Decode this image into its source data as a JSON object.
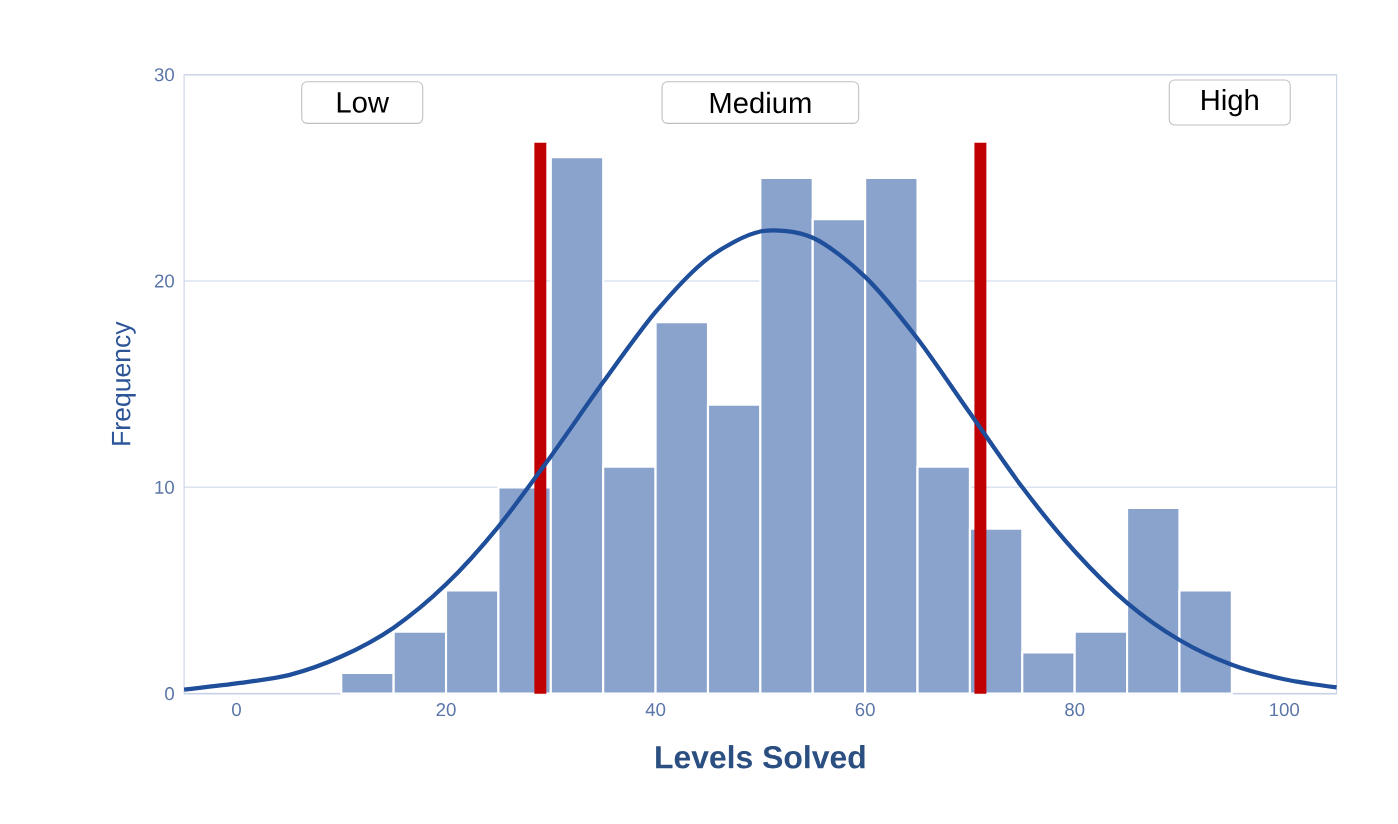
{
  "chart_data": {
    "type": "histogram",
    "xlabel": "Levels Solved",
    "ylabel": "Frequency",
    "bins": [
      10,
      15,
      20,
      25,
      30,
      35,
      40,
      45,
      50,
      55,
      60,
      65,
      70,
      75,
      80,
      85,
      90,
      95
    ],
    "values": [
      1,
      3,
      5,
      10,
      26,
      11,
      18,
      14,
      25,
      23,
      25,
      11,
      8,
      2,
      3,
      9,
      5
    ],
    "color": "#8aa3cc",
    "series": [
      {
        "type": "line",
        "color": "#1f4e9a",
        "marker": "none",
        "line_style": "solid",
        "x": [
          -5,
          0,
          5,
          10,
          15,
          20,
          25,
          30,
          35,
          40,
          45,
          50,
          55,
          60,
          65,
          70,
          75,
          80,
          85,
          90,
          95,
          100,
          105
        ],
        "values": [
          0.2,
          0.5,
          0.9,
          1.8,
          3.2,
          5.3,
          8.1,
          11.5,
          15.1,
          18.5,
          21.1,
          22.4,
          22.1,
          20.2,
          17.2,
          13.6,
          10.0,
          6.9,
          4.4,
          2.6,
          1.4,
          0.7,
          0.3
        ]
      }
    ],
    "ref_lines": [
      {
        "axis": "x",
        "value": 29,
        "color": "#c00000"
      },
      {
        "axis": "x",
        "value": 71,
        "color": "#c00000"
      }
    ],
    "annotations": [
      "Low",
      "Medium",
      "High"
    ],
    "xlim": [
      -5,
      105
    ],
    "ylim": [
      0,
      30
    ],
    "xticks": [
      0,
      20,
      40,
      60,
      80,
      100
    ],
    "yticks": [
      0,
      10,
      20,
      30
    ],
    "grid": "y"
  }
}
